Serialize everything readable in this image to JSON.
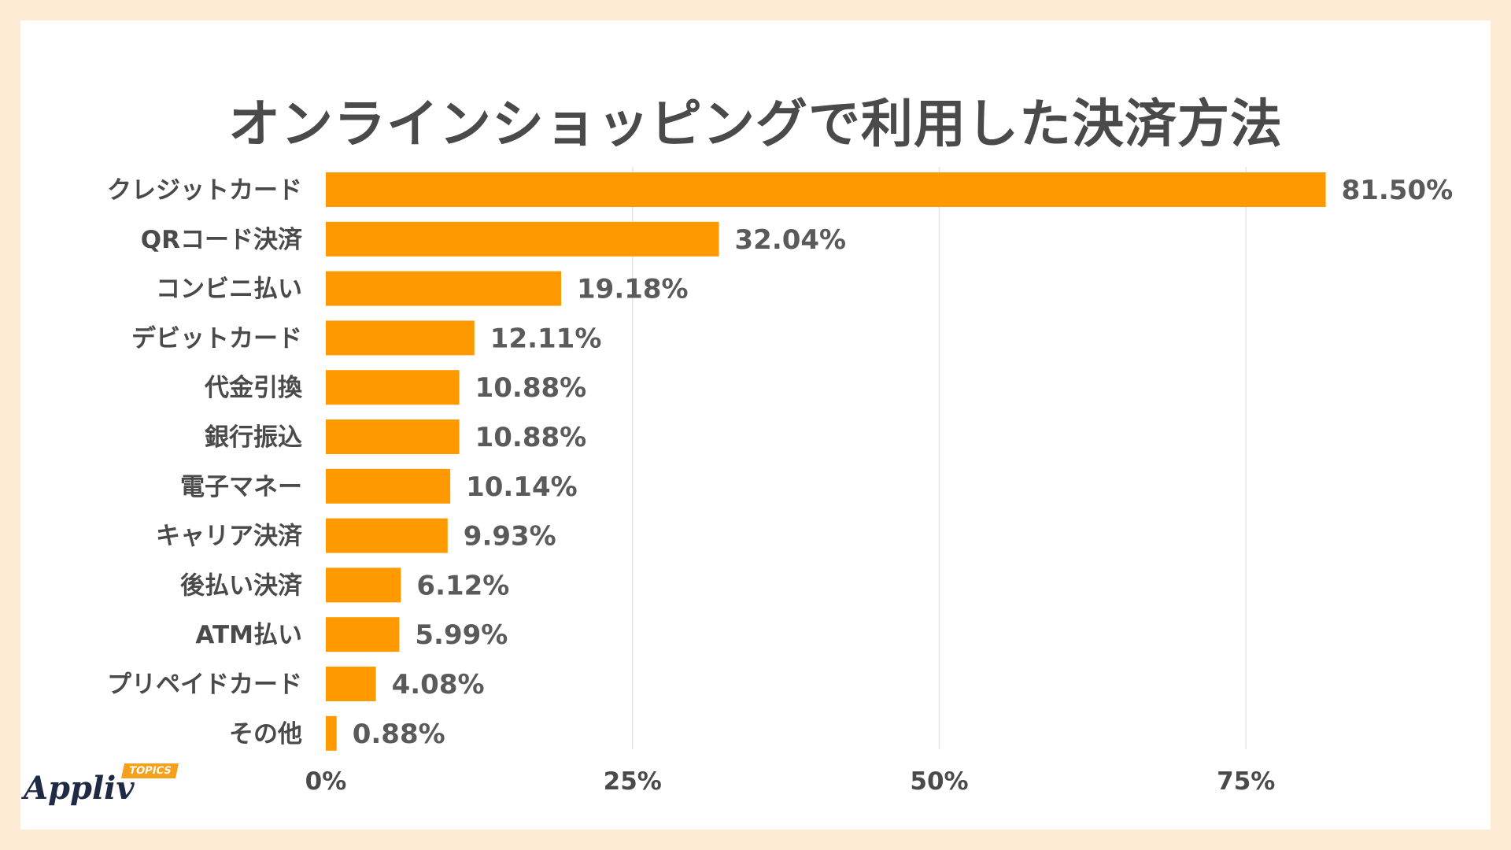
{
  "chart_data": {
    "type": "bar",
    "orientation": "horizontal",
    "title": "オンラインショッピングで利用した決済方法",
    "categories": [
      "クレジットカード",
      "QRコード決済",
      "コンビニ払い",
      "デビットカード",
      "代金引換",
      "銀行振込",
      "電子マネー",
      "キャリア決済",
      "後払い決済",
      "ATM払い",
      "プリペイドカード",
      "その他"
    ],
    "values": [
      81.5,
      32.04,
      19.18,
      12.11,
      10.88,
      10.88,
      10.14,
      9.93,
      6.12,
      5.99,
      4.08,
      0.88
    ],
    "value_labels": [
      "81.50%",
      "32.04%",
      "19.18%",
      "12.11%",
      "10.88%",
      "10.88%",
      "10.14%",
      "9.93%",
      "6.12%",
      "5.99%",
      "4.08%",
      "0.88%"
    ],
    "xticks": [
      0,
      25,
      50,
      75
    ],
    "xtick_labels": [
      "0%",
      "25%",
      "50%",
      "75%"
    ],
    "xlim": [
      0,
      100
    ],
    "xlabel": "",
    "ylabel": "",
    "grid": true,
    "bar_color": "#ff9900",
    "grid_color": "#e6e6e6"
  },
  "logo": {
    "name": "Appliv",
    "badge": "TOPICS"
  }
}
